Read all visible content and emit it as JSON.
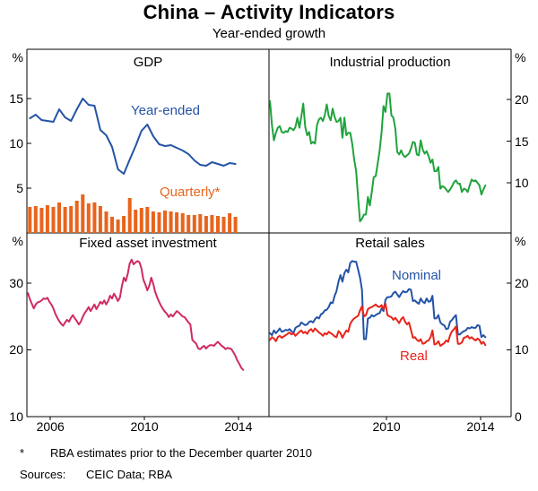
{
  "header": {
    "title": "China – Activity Indicators",
    "subtitle": "Year-ended growth"
  },
  "footnote": {
    "marker": "*",
    "text": "RBA estimates prior to the December quarter 2010",
    "sources_label": "Sources:",
    "sources_value": "CEIC Data; RBA"
  },
  "colors": {
    "blue": "#2453a6",
    "orange": "#e8641c",
    "green": "#1fa33c",
    "pink": "#d02a63",
    "red": "#e8231a",
    "axis": "#000000"
  },
  "chart_data": [
    {
      "type": "line+bar",
      "title": "GDP",
      "unit": "%",
      "yaxis_side": "left",
      "ylim": [
        0,
        20.5
      ],
      "yticks": [
        5,
        10,
        15
      ],
      "xlim": [
        2005,
        2015.3
      ],
      "xticks": [],
      "series": [
        {
          "name": "Year-ended",
          "type": "line",
          "color": "#2453a6",
          "start": 2005.125,
          "step": 0.25,
          "values": [
            12.8,
            13.2,
            12.6,
            12.5,
            12.4,
            13.8,
            12.9,
            12.5,
            13.8,
            15.0,
            14.3,
            14.2,
            11.5,
            10.9,
            9.6,
            7.1,
            6.6,
            8.2,
            9.7,
            11.4,
            12.1,
            10.8,
            9.9,
            9.7,
            9.8,
            9.5,
            9.2,
            8.8,
            8.1,
            7.6,
            7.5,
            7.9,
            7.7,
            7.5,
            7.8,
            7.7
          ]
        },
        {
          "name": "Quarterly*",
          "type": "bar",
          "color": "#e8641c",
          "start": 2005.125,
          "step": 0.25,
          "values": [
            2.9,
            3.0,
            2.8,
            3.1,
            2.9,
            3.4,
            2.9,
            3.0,
            3.6,
            4.3,
            3.3,
            3.4,
            3.0,
            2.4,
            1.8,
            1.5,
            1.9,
            3.9,
            2.6,
            2.8,
            2.9,
            2.4,
            2.3,
            2.5,
            2.4,
            2.3,
            2.2,
            2.0,
            2.0,
            2.1,
            1.9,
            2.0,
            1.9,
            1.8,
            2.2,
            1.8
          ]
        }
      ]
    },
    {
      "type": "line",
      "title": "Industrial production",
      "unit": "%",
      "yaxis_side": "right",
      "ylim": [
        4,
        26
      ],
      "yticks": [
        10,
        15,
        20
      ],
      "xlim": [
        2005,
        2015.3
      ],
      "xticks": [],
      "series": [
        {
          "name": "Industrial production",
          "type": "line",
          "color": "#1fa33c",
          "start": 2005.042,
          "step": 0.0833,
          "values": [
            19.8,
            16.9,
            15.1,
            16.0,
            16.6,
            16.8,
            16.1,
            16.0,
            16.2,
            16.1,
            16.6,
            16.5,
            16.3,
            16.7,
            17.8,
            16.6,
            17.9,
            19.5,
            16.7,
            15.7,
            16.1,
            14.7,
            14.9,
            14.7,
            16.9,
            17.6,
            17.8,
            17.4,
            18.1,
            19.4,
            18.0,
            17.5,
            18.9,
            17.9,
            17.3,
            17.4,
            17.8,
            15.4,
            17.8,
            15.7,
            16.0,
            16.0,
            14.7,
            12.8,
            11.4,
            8.2,
            5.4,
            5.7,
            6.2,
            6.2,
            8.3,
            7.3,
            8.9,
            10.7,
            10.8,
            12.3,
            13.9,
            16.1,
            19.2,
            18.5,
            20.7,
            20.7,
            18.1,
            17.8,
            16.5,
            13.7,
            13.4,
            13.9,
            13.3,
            13.1,
            13.3,
            13.5,
            14.1,
            14.9,
            14.8,
            13.4,
            13.3,
            15.1,
            14.0,
            13.5,
            13.8,
            13.2,
            12.4,
            12.8,
            11.4,
            11.4,
            11.9,
            9.3,
            9.6,
            9.5,
            9.2,
            8.9,
            9.2,
            9.6,
            10.1,
            10.3,
            9.9,
            9.9,
            8.9,
            9.3,
            9.2,
            8.9,
            9.7,
            10.4,
            10.2,
            10.3,
            10.0,
            9.7,
            8.6,
            9.2,
            9.7
          ]
        }
      ]
    },
    {
      "type": "line",
      "title": "Fixed asset investment",
      "unit": "%",
      "yaxis_side": "left",
      "ylim": [
        10,
        37.5
      ],
      "yticks": [
        10,
        20,
        30
      ],
      "xlim": [
        2005,
        2015.3
      ],
      "xticks": [
        2006,
        2010,
        2014
      ],
      "series": [
        {
          "name": "Fixed asset investment",
          "type": "line",
          "color": "#d02a63",
          "start": 2005.042,
          "step": 0.0833,
          "values": [
            28.5,
            27.6,
            26.9,
            26.2,
            26.8,
            27.1,
            27.2,
            27.4,
            27.7,
            27.6,
            27.8,
            27.2,
            26.8,
            26.2,
            25.4,
            24.8,
            24.3,
            23.9,
            23.6,
            24.1,
            24.5,
            24.2,
            24.8,
            25.2,
            24.7,
            24.3,
            23.8,
            24.2,
            24.9,
            25.5,
            25.9,
            26.4,
            25.8,
            26.3,
            26.8,
            26.1,
            26.6,
            27.2,
            26.9,
            27.4,
            26.8,
            27.3,
            28.1,
            27.7,
            28.4,
            27.9,
            27.3,
            27.8,
            29.5,
            30.8,
            30.3,
            31.4,
            32.9,
            33.5,
            32.8,
            33.1,
            33.3,
            33.1,
            32.2,
            30.5,
            29.8,
            28.9,
            29.6,
            30.8,
            29.9,
            28.7,
            27.9,
            27.2,
            26.6,
            26.1,
            25.7,
            25.4,
            24.9,
            25.3,
            25.0,
            25.4,
            25.8,
            25.6,
            25.3,
            25.0,
            24.9,
            24.5,
            24.1,
            23.8,
            21.5,
            21.2,
            20.9,
            20.2,
            20.1,
            20.4,
            20.6,
            20.2,
            20.5,
            20.7,
            20.7,
            20.6,
            20.9,
            21.2,
            20.9,
            20.6,
            20.4,
            20.1,
            20.3,
            20.2,
            20.1,
            19.6,
            19.1,
            18.4,
            17.9,
            17.3,
            17.0
          ]
        }
      ]
    },
    {
      "type": "line",
      "title": "Retail sales",
      "unit": "%",
      "yaxis_side": "right",
      "ylim": [
        0,
        27.5
      ],
      "yticks": [
        0,
        10,
        20
      ],
      "xlim": [
        2005,
        2015.3
      ],
      "xticks": [
        2010,
        2014
      ],
      "series": [
        {
          "name": "Nominal",
          "type": "line",
          "color": "#2453a6",
          "start": 2005.042,
          "step": 0.0833,
          "values": [
            12.5,
            12.2,
            12.9,
            12.5,
            12.8,
            13.2,
            12.7,
            12.8,
            13.0,
            12.9,
            13.1,
            12.8,
            12.5,
            13.3,
            13.5,
            13.6,
            14.1,
            13.9,
            13.7,
            13.8,
            14.2,
            14.3,
            14.1,
            14.6,
            14.9,
            14.7,
            15.3,
            15.5,
            15.9,
            16.0,
            16.4,
            17.1,
            17.0,
            18.1,
            18.8,
            20.2,
            21.2,
            20.2,
            21.5,
            22.0,
            21.6,
            23.0,
            23.3,
            23.2,
            23.2,
            22.0,
            20.8,
            19.0,
            11.6,
            11.6,
            14.7,
            14.8,
            15.2,
            15.0,
            15.2,
            15.4,
            15.5,
            16.2,
            15.8,
            17.5,
            17.9,
            17.9,
            18.0,
            18.5,
            18.7,
            18.3,
            17.9,
            18.4,
            18.8,
            18.6,
            18.7,
            19.1,
            19.0,
            17.3,
            17.4,
            17.1,
            16.9,
            17.7,
            17.2,
            17.0,
            17.7,
            17.2,
            17.3,
            18.1,
            14.7,
            14.7,
            15.2,
            14.1,
            13.8,
            13.7,
            13.1,
            13.2,
            14.2,
            14.5,
            14.9,
            15.2,
            12.3,
            12.3,
            12.6,
            12.8,
            12.9,
            13.3,
            13.2,
            13.4,
            13.3,
            13.3,
            13.7,
            13.6,
            11.9,
            12.2,
            11.9
          ]
        },
        {
          "name": "Real",
          "type": "line",
          "color": "#e8231a",
          "start": 2005.042,
          "step": 0.0833,
          "values": [
            11.5,
            11.9,
            11.7,
            11.3,
            11.9,
            12.1,
            11.8,
            12.0,
            12.2,
            12.4,
            12.6,
            12.3,
            12.5,
            12.1,
            12.4,
            12.7,
            12.9,
            12.5,
            12.7,
            12.4,
            12.9,
            13.1,
            12.7,
            13.2,
            12.9,
            12.6,
            12.4,
            12.1,
            12.5,
            12.3,
            12.7,
            12.5,
            12.3,
            12.0,
            11.9,
            12.8,
            12.5,
            11.8,
            12.4,
            12.9,
            12.7,
            13.9,
            14.4,
            14.7,
            14.9,
            15.1,
            15.9,
            16.5,
            15.0,
            15.2,
            16.1,
            16.3,
            16.4,
            16.6,
            16.8,
            16.5,
            16.4,
            16.7,
            16.1,
            16.9,
            15.2,
            15.0,
            14.9,
            14.5,
            14.8,
            14.4,
            14.0,
            14.6,
            14.9,
            14.2,
            13.8,
            14.1,
            13.0,
            11.8,
            11.9,
            11.5,
            11.3,
            11.6,
            10.9,
            11.0,
            11.3,
            11.4,
            11.9,
            12.9,
            10.8,
            10.9,
            11.3,
            10.6,
            10.8,
            11.0,
            11.4,
            11.2,
            12.2,
            12.8,
            13.1,
            13.5,
            10.9,
            10.9,
            11.1,
            11.8,
            11.9,
            12.1,
            11.7,
            11.9,
            11.6,
            11.4,
            11.7,
            11.5,
            10.9,
            11.2,
            10.7
          ]
        }
      ]
    }
  ]
}
